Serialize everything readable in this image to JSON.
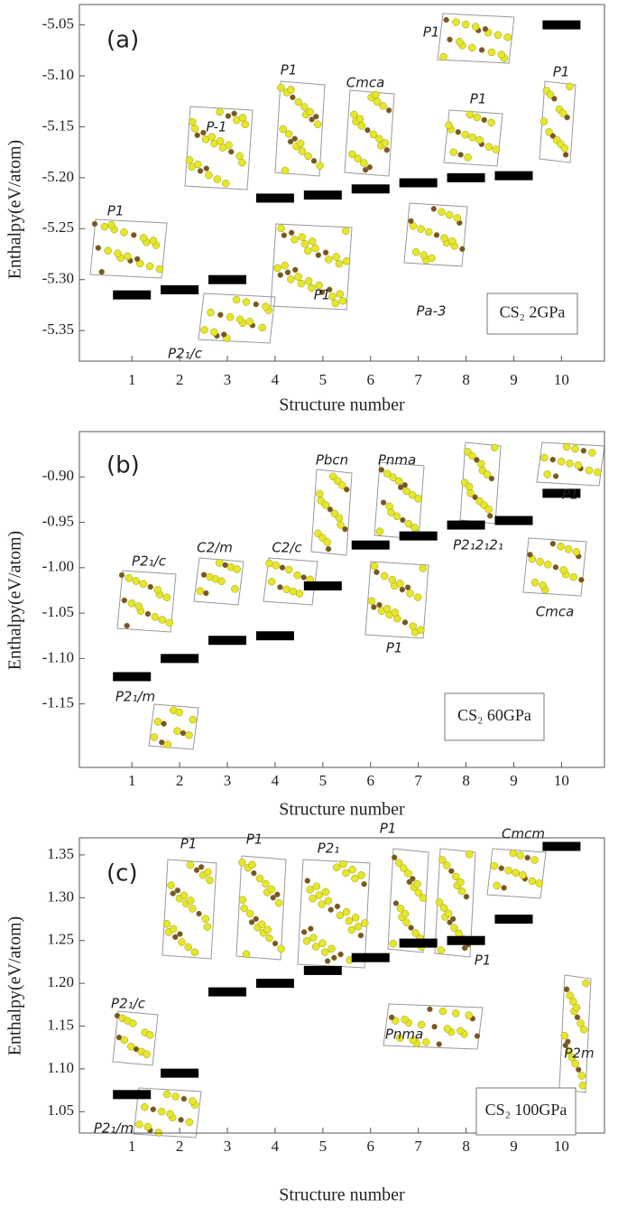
{
  "chart_data": [
    {
      "type": "scatter",
      "panel_label": "(a)",
      "x_label": "Structure number",
      "y_label": "Enthalpy(eV/atom)",
      "note": "CS₂ 2GPa",
      "x": [
        1,
        2,
        3,
        4,
        5,
        6,
        7,
        8,
        9,
        10
      ],
      "values": [
        -5.315,
        -5.31,
        -5.3,
        -5.22,
        -5.217,
        -5.211,
        -5.205,
        -5.2,
        -5.198,
        -5.05
      ],
      "color": "#000000",
      "xlim": [
        -0.1,
        10.9
      ],
      "xticks": [
        1,
        2,
        3,
        4,
        5,
        6,
        7,
        8,
        9,
        10
      ],
      "ylim": [
        -5.38,
        -5.03
      ],
      "yticks": [
        -5.35,
        {
          "value": -5.3,
          "label": "-5.30"
        },
        -5.25,
        {
          "value": -5.2,
          "label": "-5.20"
        },
        -5.15,
        {
          "value": -5.1,
          "label": "-5.10"
        },
        -5.05
      ],
      "structures": [
        "P1",
        "P-1",
        "P1",
        "Cmca",
        "P1",
        "P1",
        "P1",
        "Pa-3",
        "P1",
        "P2₁/c"
      ]
    },
    {
      "type": "scatter",
      "panel_label": "(b)",
      "x_label": "Structure number",
      "y_label": "Enthalpy(eV/atom)",
      "note": "CS₂ 60GPa",
      "x": [
        1,
        2,
        3,
        4,
        5,
        6,
        7,
        8,
        9,
        10
      ],
      "values": [
        -1.12,
        -1.1,
        -1.08,
        -1.075,
        -1.02,
        -0.975,
        -0.965,
        -0.953,
        -0.948,
        -0.918
      ],
      "color": "#000000",
      "xlim": [
        -0.1,
        10.9
      ],
      "xticks": [
        1,
        2,
        3,
        4,
        5,
        6,
        7,
        8,
        9,
        10
      ],
      "ylim": [
        -1.22,
        -0.85
      ],
      "yticks": [
        -1.15,
        {
          "value": -1.1,
          "label": "-1.10"
        },
        -1.05,
        {
          "value": -1.0,
          "label": "-1.00"
        },
        -0.95,
        {
          "value": -0.9,
          "label": "-0.90"
        }
      ],
      "structures": [
        "P2₁/c",
        "C2/m",
        "C2/c",
        "Pbcn",
        "Pnma",
        "P1",
        "P2₁2₁2₁",
        "Cmca",
        "P1",
        "P2₁/m"
      ]
    },
    {
      "type": "scatter",
      "panel_label": "(c)",
      "x_label": "Structure number",
      "y_label": "Enthalpy(eV/atom)",
      "note": "CS₂ 100GPa",
      "x": [
        1,
        2,
        3,
        4,
        5,
        6,
        7,
        8,
        9,
        10
      ],
      "values": [
        1.07,
        1.095,
        1.19,
        1.2,
        1.215,
        1.23,
        1.247,
        1.25,
        1.275,
        1.36
      ],
      "color": "#000000",
      "xlim": [
        -0.1,
        10.9
      ],
      "xticks": [
        1,
        2,
        3,
        4,
        5,
        6,
        7,
        8,
        9,
        10
      ],
      "ylim": [
        1.025,
        1.37
      ],
      "yticks": [
        1.05,
        {
          "value": 1.1,
          "label": "1.10"
        },
        1.15,
        {
          "value": 1.2,
          "label": "1.20"
        },
        1.25,
        {
          "value": 1.3,
          "label": "1.30"
        },
        1.35
      ],
      "structures": [
        "P2₁/c",
        "P1",
        "P1",
        "P2₁",
        "P1",
        "Cmcm",
        "P1",
        "Pnma",
        "P2m",
        "P2₁/m"
      ]
    }
  ]
}
